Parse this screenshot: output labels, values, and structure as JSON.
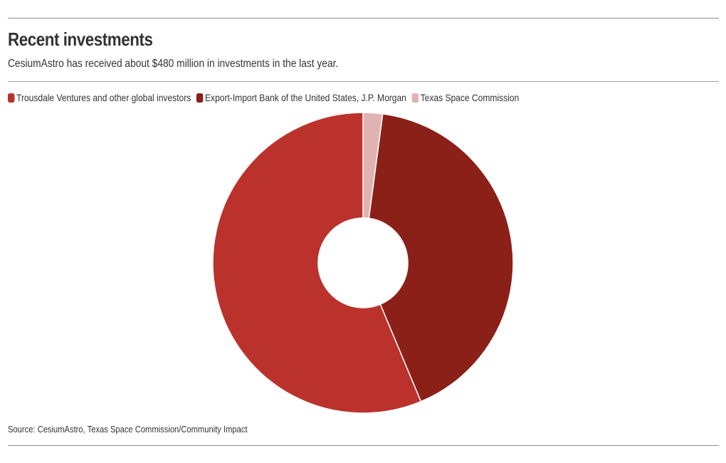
{
  "header": {
    "title": "Recent investments",
    "subtitle": "CesiumAstro has received about $480 million in investments in the last year."
  },
  "chart_data": {
    "type": "pie",
    "variant": "donut",
    "categories": [
      "Texas Space Commission",
      "Export-Import Bank of the United States, J.P. Morgan",
      "Trousdale Ventures and other global investors"
    ],
    "values": [
      2.1,
      41.6,
      56.3
    ],
    "unit": "%",
    "colors": [
      "#e0b3b1",
      "#8b2019",
      "#bb322c"
    ],
    "legend_order": [
      2,
      1,
      0
    ],
    "legend_position": "top-left",
    "start_angle_deg": 0,
    "direction": "clockwise"
  },
  "footer": {
    "source": "Source: CesiumAstro, Texas Space Commission/Community Impact"
  }
}
